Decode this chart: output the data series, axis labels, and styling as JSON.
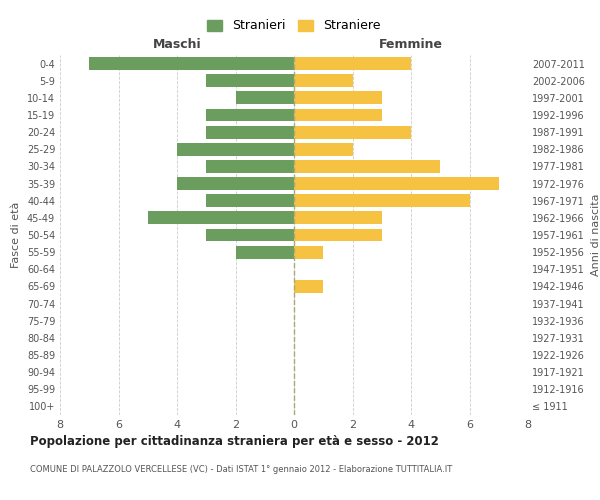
{
  "age_groups": [
    "100+",
    "95-99",
    "90-94",
    "85-89",
    "80-84",
    "75-79",
    "70-74",
    "65-69",
    "60-64",
    "55-59",
    "50-54",
    "45-49",
    "40-44",
    "35-39",
    "30-34",
    "25-29",
    "20-24",
    "15-19",
    "10-14",
    "5-9",
    "0-4"
  ],
  "birth_years": [
    "≤ 1911",
    "1912-1916",
    "1917-1921",
    "1922-1926",
    "1927-1931",
    "1932-1936",
    "1937-1941",
    "1942-1946",
    "1947-1951",
    "1952-1956",
    "1957-1961",
    "1962-1966",
    "1967-1971",
    "1972-1976",
    "1977-1981",
    "1982-1986",
    "1987-1991",
    "1992-1996",
    "1997-2001",
    "2002-2006",
    "2007-2011"
  ],
  "maschi": [
    0,
    0,
    0,
    0,
    0,
    0,
    0,
    0,
    0,
    2,
    3,
    5,
    3,
    4,
    3,
    4,
    3,
    3,
    2,
    3,
    7
  ],
  "femmine": [
    0,
    0,
    0,
    0,
    0,
    0,
    0,
    1,
    0,
    1,
    3,
    3,
    6,
    7,
    5,
    2,
    4,
    3,
    3,
    2,
    4
  ],
  "maschi_color": "#6b9e5e",
  "femmine_color": "#f5c242",
  "grid_color": "#cccccc",
  "title": "Popolazione per cittadinanza straniera per età e sesso - 2012",
  "subtitle": "COMUNE DI PALAZZOLO VERCELLESE (VC) - Dati ISTAT 1° gennaio 2012 - Elaborazione TUTTITALIA.IT",
  "xlabel_maschi": "Maschi",
  "xlabel_femmine": "Femmine",
  "ylabel": "Fasce di età",
  "ylabel_right": "Anni di nascita",
  "legend_maschi": "Stranieri",
  "legend_femmine": "Straniere",
  "xlim": 8
}
